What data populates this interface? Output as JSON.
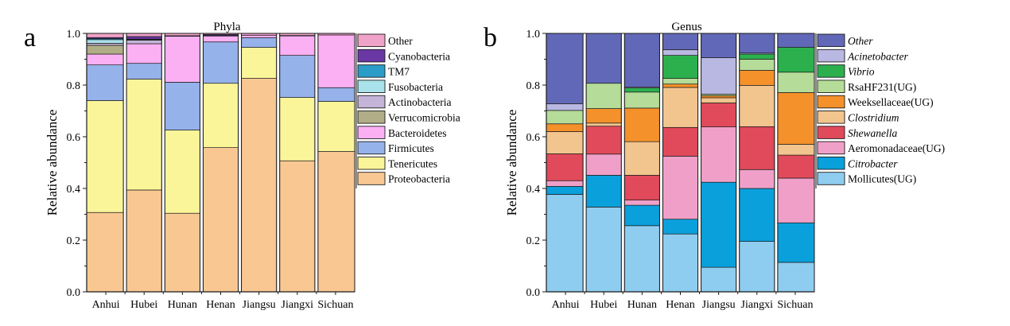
{
  "chart_data": [
    {
      "panel": "a",
      "type": "bar",
      "stacked": true,
      "title": "Phyla",
      "xlabel": "",
      "ylabel": "Relative abundance",
      "ylim": [
        0,
        1
      ],
      "yticks": [
        "0.0",
        "0.2",
        "0.4",
        "0.6",
        "0.8",
        "1.0"
      ],
      "legend_position": "right",
      "categories": [
        "Anhui",
        "Hubei",
        "Hunan",
        "Henan",
        "Jiangsu",
        "Jiangxi",
        "Sichuan"
      ],
      "series": [
        {
          "name": "Proteobacteria",
          "italic": false,
          "color": "#f9c892",
          "values": [
            0.307,
            0.394,
            0.304,
            0.558,
            0.826,
            0.507,
            0.543
          ]
        },
        {
          "name": "Tenericutes",
          "italic": false,
          "color": "#fbf59a",
          "values": [
            0.433,
            0.429,
            0.322,
            0.249,
            0.12,
            0.245,
            0.194
          ]
        },
        {
          "name": "Firmicutes",
          "italic": false,
          "color": "#96b2ea",
          "values": [
            0.138,
            0.061,
            0.185,
            0.16,
            0.037,
            0.163,
            0.053
          ]
        },
        {
          "name": "Bacteroidetes",
          "italic": false,
          "color": "#fbb0f4",
          "values": [
            0.042,
            0.076,
            0.178,
            0.023,
            0.01,
            0.076,
            0.204
          ]
        },
        {
          "name": "Verrucomicrobia",
          "italic": false,
          "color": "#b0ad87",
          "values": [
            0.034,
            0.0,
            0.0,
            0.0,
            0.0,
            0.0,
            0.0
          ]
        },
        {
          "name": "Actinobacteria",
          "italic": false,
          "color": "#c4b4d8",
          "values": [
            0.008,
            0.014,
            0.002,
            0.002,
            0.0,
            0.001,
            0.0
          ]
        },
        {
          "name": "Fusobacteria",
          "italic": false,
          "color": "#a9e2ea",
          "values": [
            0.014,
            0.002,
            0.0,
            0.0,
            0.0,
            0.0,
            0.0
          ]
        },
        {
          "name": "TM7",
          "italic": false,
          "color": "#2b9cc8",
          "values": [
            0.004,
            0.002,
            0.0,
            0.0,
            0.0,
            0.0,
            0.0
          ]
        },
        {
          "name": "Cyanobacteria",
          "italic": false,
          "color": "#6a38a4",
          "values": [
            0.004,
            0.01,
            0.0,
            0.004,
            0.0,
            0.0,
            0.0
          ]
        },
        {
          "name": "Other",
          "italic": false,
          "color": "#f0a3c8",
          "values": [
            0.016,
            0.012,
            0.009,
            0.004,
            0.007,
            0.008,
            0.006
          ]
        }
      ]
    },
    {
      "panel": "b",
      "type": "bar",
      "stacked": true,
      "title": "Genus",
      "xlabel": "",
      "ylabel": "Relative abundance",
      "ylim": [
        0,
        1
      ],
      "yticks": [
        "0.0",
        "0.2",
        "0.4",
        "0.6",
        "0.8",
        "1.0"
      ],
      "legend_position": "right",
      "categories": [
        "Anhui",
        "Hubei",
        "Hunan",
        "Henan",
        "Jiangsu",
        "Jiangxi",
        "Sichuan"
      ],
      "series": [
        {
          "name": "Mollicutes(UG)",
          "italic": false,
          "color": "#8fcdf0",
          "values": [
            0.377,
            0.328,
            0.256,
            0.224,
            0.095,
            0.195,
            0.114
          ]
        },
        {
          "name": "Citrobacter",
          "italic": true,
          "color": "#0aa0dc",
          "values": [
            0.031,
            0.123,
            0.079,
            0.057,
            0.329,
            0.205,
            0.153
          ]
        },
        {
          "name": "Aeromonadaceae(UG)",
          "italic": false,
          "color": "#f0a0c8",
          "values": [
            0.022,
            0.082,
            0.02,
            0.244,
            0.214,
            0.073,
            0.173
          ]
        },
        {
          "name": "Shewanella",
          "italic": true,
          "color": "#e04a5a",
          "values": [
            0.104,
            0.108,
            0.096,
            0.111,
            0.093,
            0.166,
            0.089
          ]
        },
        {
          "name": "Clostridium",
          "italic": true,
          "color": "#f2c48e",
          "values": [
            0.086,
            0.012,
            0.13,
            0.155,
            0.02,
            0.16,
            0.042
          ]
        },
        {
          "name": "Weeksellaceae(UG)",
          "italic": false,
          "color": "#f5912a",
          "values": [
            0.03,
            0.056,
            0.13,
            0.013,
            0.008,
            0.058,
            0.2
          ]
        },
        {
          "name": "RsaHF231(UG)",
          "italic": false,
          "color": "#b5dc98",
          "values": [
            0.052,
            0.098,
            0.062,
            0.022,
            0.006,
            0.043,
            0.079
          ]
        },
        {
          "name": "Vibrio",
          "italic": true,
          "color": "#2cb04e",
          "values": [
            0.0,
            0.0,
            0.016,
            0.089,
            0.0,
            0.02,
            0.096
          ]
        },
        {
          "name": "Acinetobacter",
          "italic": true,
          "color": "#b8b8e2",
          "values": [
            0.026,
            0.0,
            0.004,
            0.022,
            0.141,
            0.004,
            0.0
          ]
        },
        {
          "name": "Other",
          "italic": true,
          "color": "#6268b8",
          "values": [
            0.272,
            0.193,
            0.207,
            0.063,
            0.094,
            0.076,
            0.054
          ]
        }
      ]
    }
  ]
}
